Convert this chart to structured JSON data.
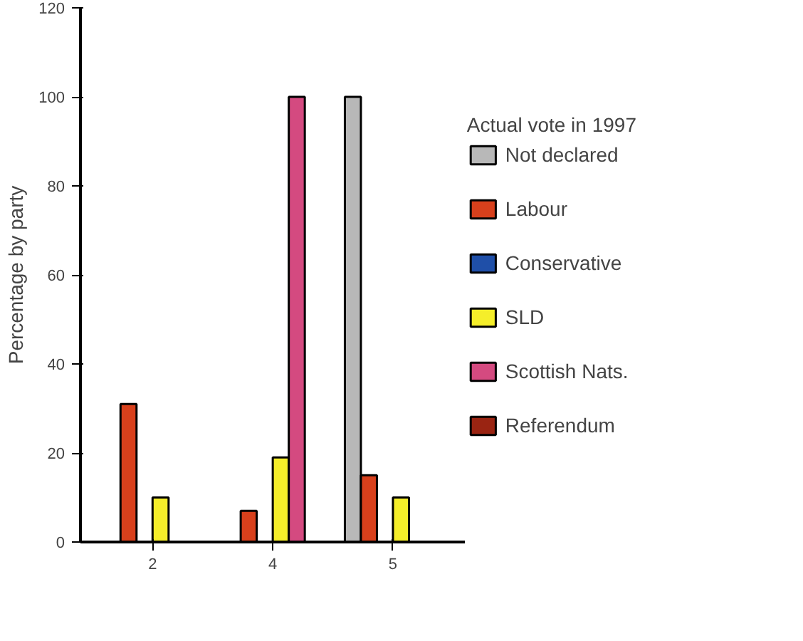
{
  "chart_data": {
    "type": "bar",
    "ylabel": "Percentage by party",
    "legend_title": "Actual vote in 1997",
    "categories": [
      "2",
      "4",
      "5"
    ],
    "series": [
      {
        "name": "Not declared",
        "color": "#b8b8b8",
        "values": [
          null,
          null,
          100
        ]
      },
      {
        "name": "Labour",
        "color": "#d8401c",
        "values": [
          31,
          7,
          15
        ]
      },
      {
        "name": "Conservative",
        "color": "#1f4fa8",
        "values": [
          null,
          null,
          null
        ]
      },
      {
        "name": "SLD",
        "color": "#f5ee2a",
        "values": [
          10,
          19,
          10
        ]
      },
      {
        "name": "Scottish Nats.",
        "color": "#d44a80",
        "values": [
          null,
          100,
          null
        ]
      },
      {
        "name": "Referendum",
        "color": "#9a2412",
        "values": [
          null,
          null,
          null
        ]
      }
    ],
    "ylim": [
      0,
      120
    ],
    "yticks": [
      0,
      20,
      40,
      60,
      80,
      100,
      120
    ],
    "grid": false,
    "legend": "right"
  }
}
